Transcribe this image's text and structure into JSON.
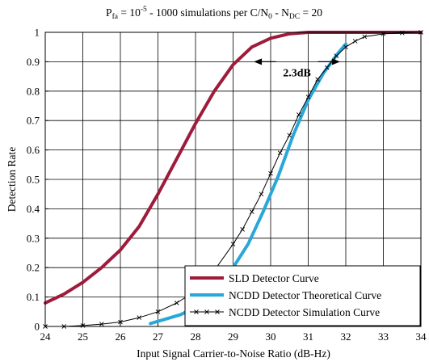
{
  "chart_data": {
    "type": "line",
    "title": {
      "p": "P",
      "fa": "fa",
      "eq1": " = 10",
      "exp": "-5",
      "mid": " - 1000 simulations per C/N",
      "zero": "0",
      "dash": " - N",
      "dc": "DC",
      "eq2": " = 20"
    },
    "xlabel": "Input Signal Carrier-to-Noise Ratio (dB-Hz)",
    "ylabel": "Detection Rate",
    "xlim": [
      24,
      34
    ],
    "ylim": [
      0,
      1
    ],
    "x_ticks": [
      "24",
      "25",
      "26",
      "27",
      "28",
      "29",
      "30",
      "31",
      "32",
      "33",
      "34"
    ],
    "y_ticks": [
      "0",
      "0.1",
      "0.2",
      "0.3",
      "0.4",
      "0.5",
      "0.6",
      "0.7",
      "0.8",
      "0.9",
      "1"
    ],
    "grid": true,
    "legend_position": "bottom-right",
    "annotation": {
      "text": "2.3dB",
      "from_x": 29.55,
      "to_x": 31.85,
      "y": 0.9
    },
    "series": [
      {
        "name": "SLD Detector Curve",
        "color": "#9e1b3c",
        "marker": "none",
        "x": [
          24,
          24.5,
          25,
          25.5,
          26,
          26.5,
          27,
          27.5,
          28,
          28.5,
          29,
          29.5,
          30,
          30.5,
          31,
          31.5,
          32,
          32.5,
          33,
          33.5,
          34
        ],
        "y": [
          0.08,
          0.11,
          0.15,
          0.2,
          0.26,
          0.34,
          0.45,
          0.57,
          0.69,
          0.8,
          0.89,
          0.95,
          0.98,
          0.995,
          1.0,
          1.0,
          1.0,
          1.0,
          1.0,
          1.0,
          1.0
        ]
      },
      {
        "name": "NCDD Detector Theoretical Curve",
        "color": "#29a7d9",
        "marker": "none",
        "x": [
          26.8,
          27.2,
          27.6,
          28.0,
          28.4,
          28.8,
          29.0,
          29.4,
          29.8,
          30.2,
          30.6,
          31.0,
          31.4,
          31.8,
          32.0
        ],
        "y": [
          0.01,
          0.025,
          0.04,
          0.065,
          0.1,
          0.15,
          0.2,
          0.28,
          0.39,
          0.51,
          0.65,
          0.77,
          0.86,
          0.93,
          0.96
        ]
      },
      {
        "name": "NCDD Detector Simulation Curve",
        "color": "#000000",
        "marker": "x",
        "x": [
          24,
          24.5,
          25,
          25.5,
          26,
          26.5,
          27,
          27.5,
          28,
          28.5,
          29,
          29.25,
          29.5,
          29.75,
          30,
          30.25,
          30.5,
          30.75,
          31,
          31.25,
          31.5,
          31.75,
          32,
          32.25,
          32.5,
          33,
          33.5,
          34
        ],
        "y": [
          0.0,
          0.0,
          0.003,
          0.008,
          0.015,
          0.03,
          0.05,
          0.08,
          0.12,
          0.19,
          0.28,
          0.33,
          0.39,
          0.45,
          0.52,
          0.59,
          0.65,
          0.72,
          0.78,
          0.84,
          0.88,
          0.92,
          0.95,
          0.97,
          0.985,
          0.995,
          0.998,
          1.0
        ]
      }
    ]
  }
}
